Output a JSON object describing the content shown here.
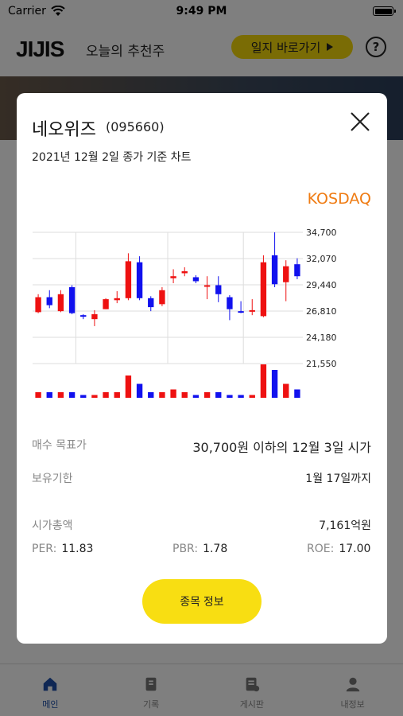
{
  "status_bar": {
    "carrier": "Carrier",
    "time": "9:49 PM"
  },
  "header": {
    "logo": "JIJIS",
    "title": "오늘의 추천주",
    "journal_button": "일지 바로가기"
  },
  "tabs": [
    {
      "label": "메인",
      "icon": "home-icon",
      "active": true
    },
    {
      "label": "기록",
      "icon": "record-icon",
      "active": false
    },
    {
      "label": "게시판",
      "icon": "board-icon",
      "active": false
    },
    {
      "label": "내정보",
      "icon": "person-icon",
      "active": false
    }
  ],
  "modal": {
    "stock_name": "네오위즈",
    "stock_code": "(095660)",
    "chart_basis": "2021년 12월 2일 종가 기준 차트",
    "market": "KOSDAQ",
    "buy_target_label": "매수 목표가",
    "buy_target_value": "30,700원 이하의 12월 3일 시가",
    "holding_label": "보유기한",
    "holding_value": "1월 17일까지",
    "market_cap_label": "시가총액",
    "market_cap_value": "7,161억원",
    "per_label": "PER:",
    "per_value": "11.83",
    "pbr_label": "PBR:",
    "pbr_value": "1.78",
    "roe_label": "ROE:",
    "roe_value": "17.00",
    "detail_button": "종목 정보"
  },
  "chart_data": {
    "type": "candlestick",
    "y_ticks": [
      "34,700",
      "32,070",
      "29,440",
      "26,810",
      "24,180",
      "21,550"
    ],
    "ylim": [
      21550,
      34700
    ],
    "colors": {
      "up": "#ee1111",
      "down": "#1111ee",
      "grid": "#dddddd"
    },
    "candles": [
      {
        "open": 26700,
        "close": 28200,
        "high": 28500,
        "low": 26600,
        "volume": 2
      },
      {
        "open": 28200,
        "close": 27400,
        "high": 28900,
        "low": 27100,
        "volume": 2
      },
      {
        "open": 26800,
        "close": 28500,
        "high": 28900,
        "low": 26700,
        "volume": 2
      },
      {
        "open": 29200,
        "close": 26600,
        "high": 29400,
        "low": 26500,
        "volume": 2
      },
      {
        "open": 26400,
        "close": 26300,
        "high": 26500,
        "low": 26000,
        "volume": 1
      },
      {
        "open": 26000,
        "close": 26500,
        "high": 26900,
        "low": 25300,
        "volume": 1
      },
      {
        "open": 27000,
        "close": 28000,
        "high": 28100,
        "low": 27000,
        "volume": 2
      },
      {
        "open": 27900,
        "close": 28100,
        "high": 28800,
        "low": 27600,
        "volume": 2
      },
      {
        "open": 28100,
        "close": 31800,
        "high": 32600,
        "low": 27900,
        "volume": 8
      },
      {
        "open": 31700,
        "close": 28100,
        "high": 32300,
        "low": 27900,
        "volume": 5
      },
      {
        "open": 28100,
        "close": 27200,
        "high": 28300,
        "low": 26800,
        "volume": 2
      },
      {
        "open": 27500,
        "close": 28900,
        "high": 29200,
        "low": 27300,
        "volume": 2
      },
      {
        "open": 30100,
        "close": 30300,
        "high": 31000,
        "low": 29600,
        "volume": 3
      },
      {
        "open": 30600,
        "close": 30800,
        "high": 31200,
        "low": 30300,
        "volume": 2
      },
      {
        "open": 30200,
        "close": 29800,
        "high": 30400,
        "low": 29600,
        "volume": 1
      },
      {
        "open": 29300,
        "close": 29400,
        "high": 30300,
        "low": 28000,
        "volume": 2
      },
      {
        "open": 29400,
        "close": 28500,
        "high": 30300,
        "low": 27700,
        "volume": 2
      },
      {
        "open": 28200,
        "close": 27000,
        "high": 28400,
        "low": 25900,
        "volume": 1
      },
      {
        "open": 26800,
        "close": 26700,
        "high": 27800,
        "low": 26600,
        "volume": 1
      },
      {
        "open": 26800,
        "close": 26900,
        "high": 28000,
        "low": 26400,
        "volume": 1
      },
      {
        "open": 26300,
        "close": 31700,
        "high": 32400,
        "low": 26200,
        "volume": 12
      },
      {
        "open": 32400,
        "close": 29500,
        "high": 34700,
        "low": 29200,
        "volume": 10
      },
      {
        "open": 29700,
        "close": 31300,
        "high": 31900,
        "low": 27800,
        "volume": 5
      },
      {
        "open": 31500,
        "close": 30300,
        "high": 32100,
        "low": 30000,
        "volume": 3
      }
    ]
  }
}
